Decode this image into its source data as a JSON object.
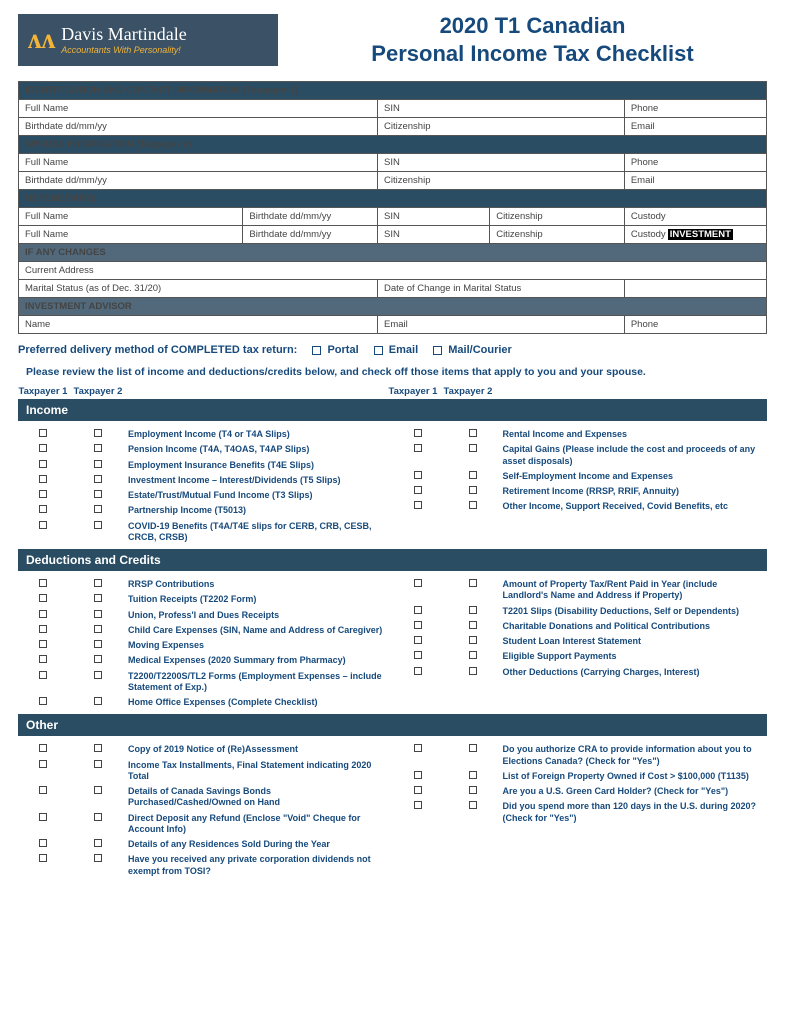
{
  "brand": {
    "name": "Davis Martindale",
    "tagline": "Accountants With Personality!"
  },
  "title_line1": "2020 T1 Canadian",
  "title_line2": "Personal Income Tax Checklist",
  "tables": {
    "section1": "IDENTIFICATION AND CONTACT INFORMATION (Taxpayer 1)",
    "row1": {
      "a": "Full Name",
      "b": "SIN",
      "c": "Phone"
    },
    "row2": {
      "a": "Birthdate dd/mm/yy",
      "b": "Citizenship",
      "c": "Email"
    },
    "section2": "SPOUSE INFORMATION (Taxpayer 2)",
    "row3": {
      "a": "Full Name",
      "b": "SIN",
      "c": "Phone"
    },
    "row4": {
      "a": "Birthdate dd/mm/yy",
      "b": "Citizenship",
      "c": "Email"
    },
    "section3": "DEPENDENT(S)",
    "row5": {
      "a": "Full Name",
      "b": "Birthdate dd/mm/yy",
      "c": "SIN",
      "d": "Citizenship",
      "e": "Custody"
    },
    "row6": {
      "a": "Full Name",
      "b": "Birthdate dd/mm/yy",
      "c": "SIN",
      "d": "Citizenship",
      "e": "Custody"
    },
    "section4": "IF ANY CHANGES",
    "row7": {
      "a": "Current Address"
    },
    "row8": {
      "a": "Marital Status (as of Dec. 31/20)",
      "b": "Date of Change in Marital Status"
    },
    "section5": "INVESTMENT ADVISOR",
    "row9": {
      "a": "Name",
      "b": "Email",
      "c": "Phone"
    },
    "investment_tag": "INVESTMENT"
  },
  "delivery": {
    "label": "Preferred delivery method of COMPLETED tax return:",
    "opts": [
      "Portal",
      "Email",
      "Mail/Courier"
    ]
  },
  "intro": "Please review the list of income and deductions/credits below, and check off those items that apply to you and your spouse.",
  "headers": {
    "tp1": "Taxpayer 1",
    "tp2": "Taxpayer 2"
  },
  "sections": {
    "income": {
      "title": "Income",
      "left": [
        "Employment Income (T4 or T4A Slips)",
        "Pension Income (T4A, T4OAS, T4AP Slips)",
        "Employment Insurance Benefits (T4E Slips)",
        "Investment Income – Interest/Dividends (T5 Slips)",
        "Estate/Trust/Mutual Fund Income (T3 Slips)",
        "Partnership Income (T5013)",
        "COVID-19 Benefits (T4A/T4E slips for CERB, CRB, CESB, CRCB, CRSB)"
      ],
      "right": [
        "Rental Income and Expenses",
        "Capital Gains (Please include the cost and proceeds of any asset disposals)",
        "Self-Employment Income and Expenses",
        "Retirement Income (RRSP, RRIF, Annuity)",
        "Other Income, Support Received, Covid Benefits, etc"
      ]
    },
    "deductions": {
      "title": "Deductions and Credits",
      "left": [
        "RRSP Contributions",
        "Tuition Receipts (T2202 Form)",
        "Union, Profess'l and Dues Receipts",
        "Child Care Expenses (SIN, Name and Address of Caregiver)",
        "Moving Expenses",
        "Medical Expenses (2020 Summary from Pharmacy)",
        "T2200/T2200S/TL2 Forms (Employment Expenses – include Statement of Exp.)",
        "Home Office Expenses (Complete Checklist)"
      ],
      "right": [
        "Amount of Property Tax/Rent Paid in Year (include Landlord's Name and Address if Property)",
        "T2201 Slips (Disability Deductions, Self or Dependents)",
        "Charitable Donations and Political Contributions",
        "Student Loan Interest Statement",
        "Eligible Support Payments",
        "Other Deductions (Carrying Charges, Interest)"
      ]
    },
    "other": {
      "title": "Other",
      "left": [
        "Copy of 2019 Notice of (Re)Assessment",
        "Income Tax Installments, Final Statement indicating 2020 Total",
        "Details of Canada Savings Bonds Purchased/Cashed/Owned on Hand",
        "Direct Deposit any Refund (Enclose \"Void\" Cheque for Account Info)",
        "Details of any Residences Sold During the Year",
        "Have you received any private corporation dividends not exempt from TOSI?"
      ],
      "right": [
        "Do you authorize CRA to provide information about you to Elections Canada? (Check for \"Yes\")",
        "List of Foreign Property Owned if Cost > $100,000 (T1135)",
        "Are you a U.S. Green Card Holder? (Check for \"Yes\")",
        "Did you spend more than 120 days in the U.S. during 2020? (Check for \"Yes\")"
      ]
    }
  },
  "colors": {
    "header_bg": "#2a4d63",
    "subheader_bg": "#51697b",
    "brand_blue": "#174a7c",
    "logo_gold": "#f2b539"
  }
}
